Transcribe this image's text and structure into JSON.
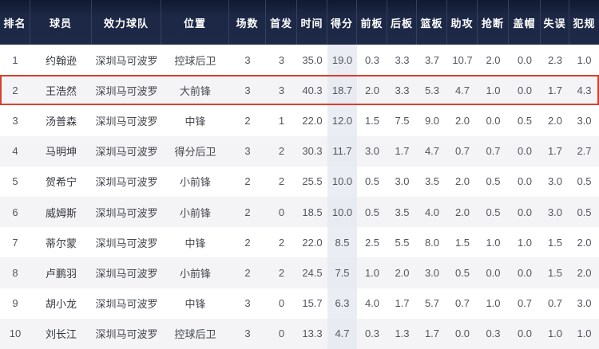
{
  "table": {
    "columns": [
      {
        "key": "rank",
        "label": "排名"
      },
      {
        "key": "player",
        "label": "球员"
      },
      {
        "key": "team",
        "label": "效力球队"
      },
      {
        "key": "position",
        "label": "位置"
      },
      {
        "key": "games",
        "label": "场数"
      },
      {
        "key": "starts",
        "label": "首发"
      },
      {
        "key": "minutes",
        "label": "时间"
      },
      {
        "key": "points",
        "label": "得分"
      },
      {
        "key": "off-rebounds",
        "label": "前板"
      },
      {
        "key": "def-rebounds",
        "label": "后板"
      },
      {
        "key": "rebounds",
        "label": "篮板"
      },
      {
        "key": "assists",
        "label": "助攻"
      },
      {
        "key": "steals",
        "label": "抢断"
      },
      {
        "key": "blocks",
        "label": "盖帽"
      },
      {
        "key": "turnovers",
        "label": "失误"
      },
      {
        "key": "fouls",
        "label": "犯规"
      }
    ],
    "rows": [
      [
        "1",
        "约翰逊",
        "深圳马可波罗",
        "控球后卫",
        "3",
        "3",
        "35.0",
        "19.0",
        "0.3",
        "3.3",
        "3.7",
        "10.7",
        "2.0",
        "0.0",
        "2.3",
        "1.0"
      ],
      [
        "2",
        "王浩然",
        "深圳马可波罗",
        "大前锋",
        "3",
        "3",
        "40.3",
        "18.7",
        "2.0",
        "3.3",
        "5.3",
        "4.7",
        "1.0",
        "0.0",
        "1.7",
        "4.3"
      ],
      [
        "3",
        "汤普森",
        "深圳马可波罗",
        "中锋",
        "2",
        "1",
        "22.0",
        "12.0",
        "1.5",
        "7.5",
        "9.0",
        "2.0",
        "0.0",
        "0.5",
        "2.0",
        "3.0"
      ],
      [
        "4",
        "马明坤",
        "深圳马可波罗",
        "得分后卫",
        "3",
        "2",
        "30.3",
        "11.7",
        "3.0",
        "1.7",
        "4.7",
        "0.7",
        "0.7",
        "0.0",
        "1.7",
        "2.7"
      ],
      [
        "5",
        "贺希宁",
        "深圳马可波罗",
        "小前锋",
        "2",
        "2",
        "25.5",
        "10.0",
        "0.5",
        "3.0",
        "3.5",
        "2.0",
        "0.5",
        "0.0",
        "3.0",
        "0.5"
      ],
      [
        "6",
        "威姆斯",
        "深圳马可波罗",
        "小前锋",
        "2",
        "0",
        "18.5",
        "10.0",
        "0.5",
        "3.5",
        "4.0",
        "2.0",
        "0.5",
        "0.0",
        "3.0",
        "0.5"
      ],
      [
        "7",
        "蒂尔蒙",
        "深圳马可波罗",
        "中锋",
        "2",
        "2",
        "22.0",
        "8.5",
        "2.5",
        "5.5",
        "8.0",
        "1.5",
        "1.0",
        "1.0",
        "1.5",
        "2.0"
      ],
      [
        "8",
        "卢鹏羽",
        "深圳马可波罗",
        "小前锋",
        "2",
        "2",
        "24.5",
        "7.5",
        "1.0",
        "2.0",
        "3.0",
        "0.5",
        "0.0",
        "0.0",
        "1.5",
        "2.0"
      ],
      [
        "9",
        "胡小龙",
        "深圳马可波罗",
        "中锋",
        "3",
        "0",
        "15.7",
        "6.3",
        "4.0",
        "1.7",
        "5.7",
        "0.7",
        "1.0",
        "0.7",
        "0.7",
        "3.0"
      ],
      [
        "10",
        "刘长江",
        "深圳马可波罗",
        "控球后卫",
        "3",
        "0",
        "13.3",
        "4.7",
        "0.3",
        "1.3",
        "1.7",
        "0.0",
        "0.3",
        "0.0",
        "1.0",
        "1.0"
      ]
    ],
    "highlighted_row_index": 1
  },
  "colors": {
    "header_bg": "#1c2845",
    "header_text": "#ffffff",
    "header_divider": "#33405f",
    "row_alt_bg": "#f4f4f6",
    "points_column_bg": "#ebedf4",
    "highlight_border": "#d8402c",
    "body_text": "#54565e"
  }
}
